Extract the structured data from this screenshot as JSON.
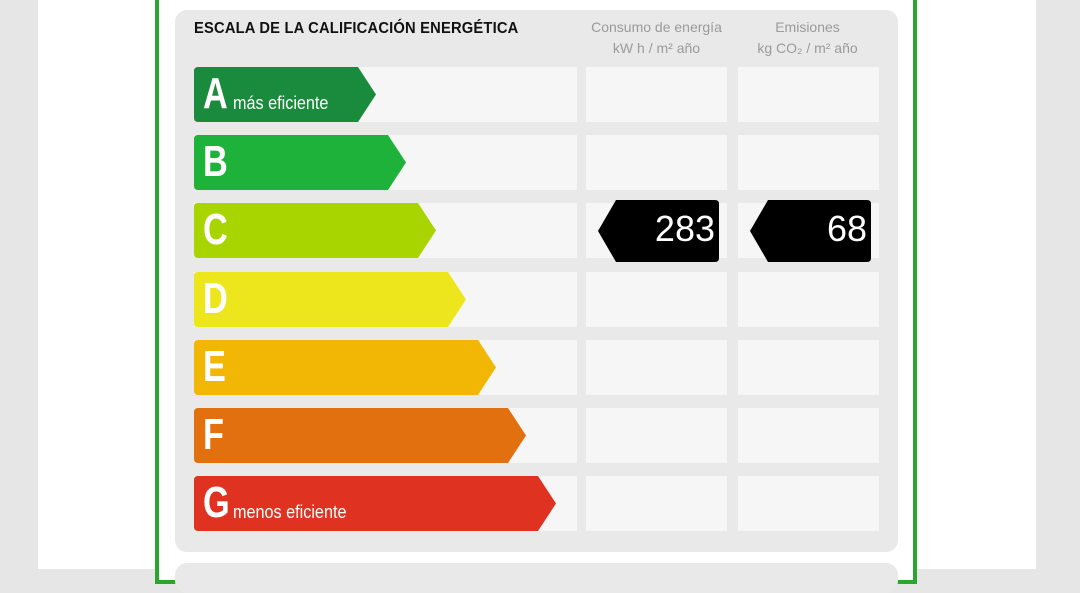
{
  "header": {
    "title": "ESCALA DE LA CALIFICACIÓN ENERGÉTICA",
    "consumo": {
      "line1": "Consumo de energía",
      "line2": "kW h / m² año"
    },
    "emisiones": {
      "line1": "Emisiones",
      "line2": "kg CO₂ / m² año"
    }
  },
  "grades": [
    {
      "letter": "A",
      "note": "más eficiente",
      "color": "#1a8a3c"
    },
    {
      "letter": "B",
      "note": "",
      "color": "#1fb23a"
    },
    {
      "letter": "C",
      "note": "",
      "color": "#a8d400"
    },
    {
      "letter": "D",
      "note": "",
      "color": "#ede61c"
    },
    {
      "letter": "E",
      "note": "",
      "color": "#f2b705"
    },
    {
      "letter": "F",
      "note": "",
      "color": "#e2700f"
    },
    {
      "letter": "G",
      "note": "menos eficiente",
      "color": "#e03221"
    }
  ],
  "rating": {
    "grade": "C",
    "consumo": "283",
    "emisiones": "68"
  },
  "colors": {
    "frame": "#2aa52e",
    "panel": "#e9e9e9",
    "cell": "#f6f6f6",
    "tag": "#000000"
  }
}
